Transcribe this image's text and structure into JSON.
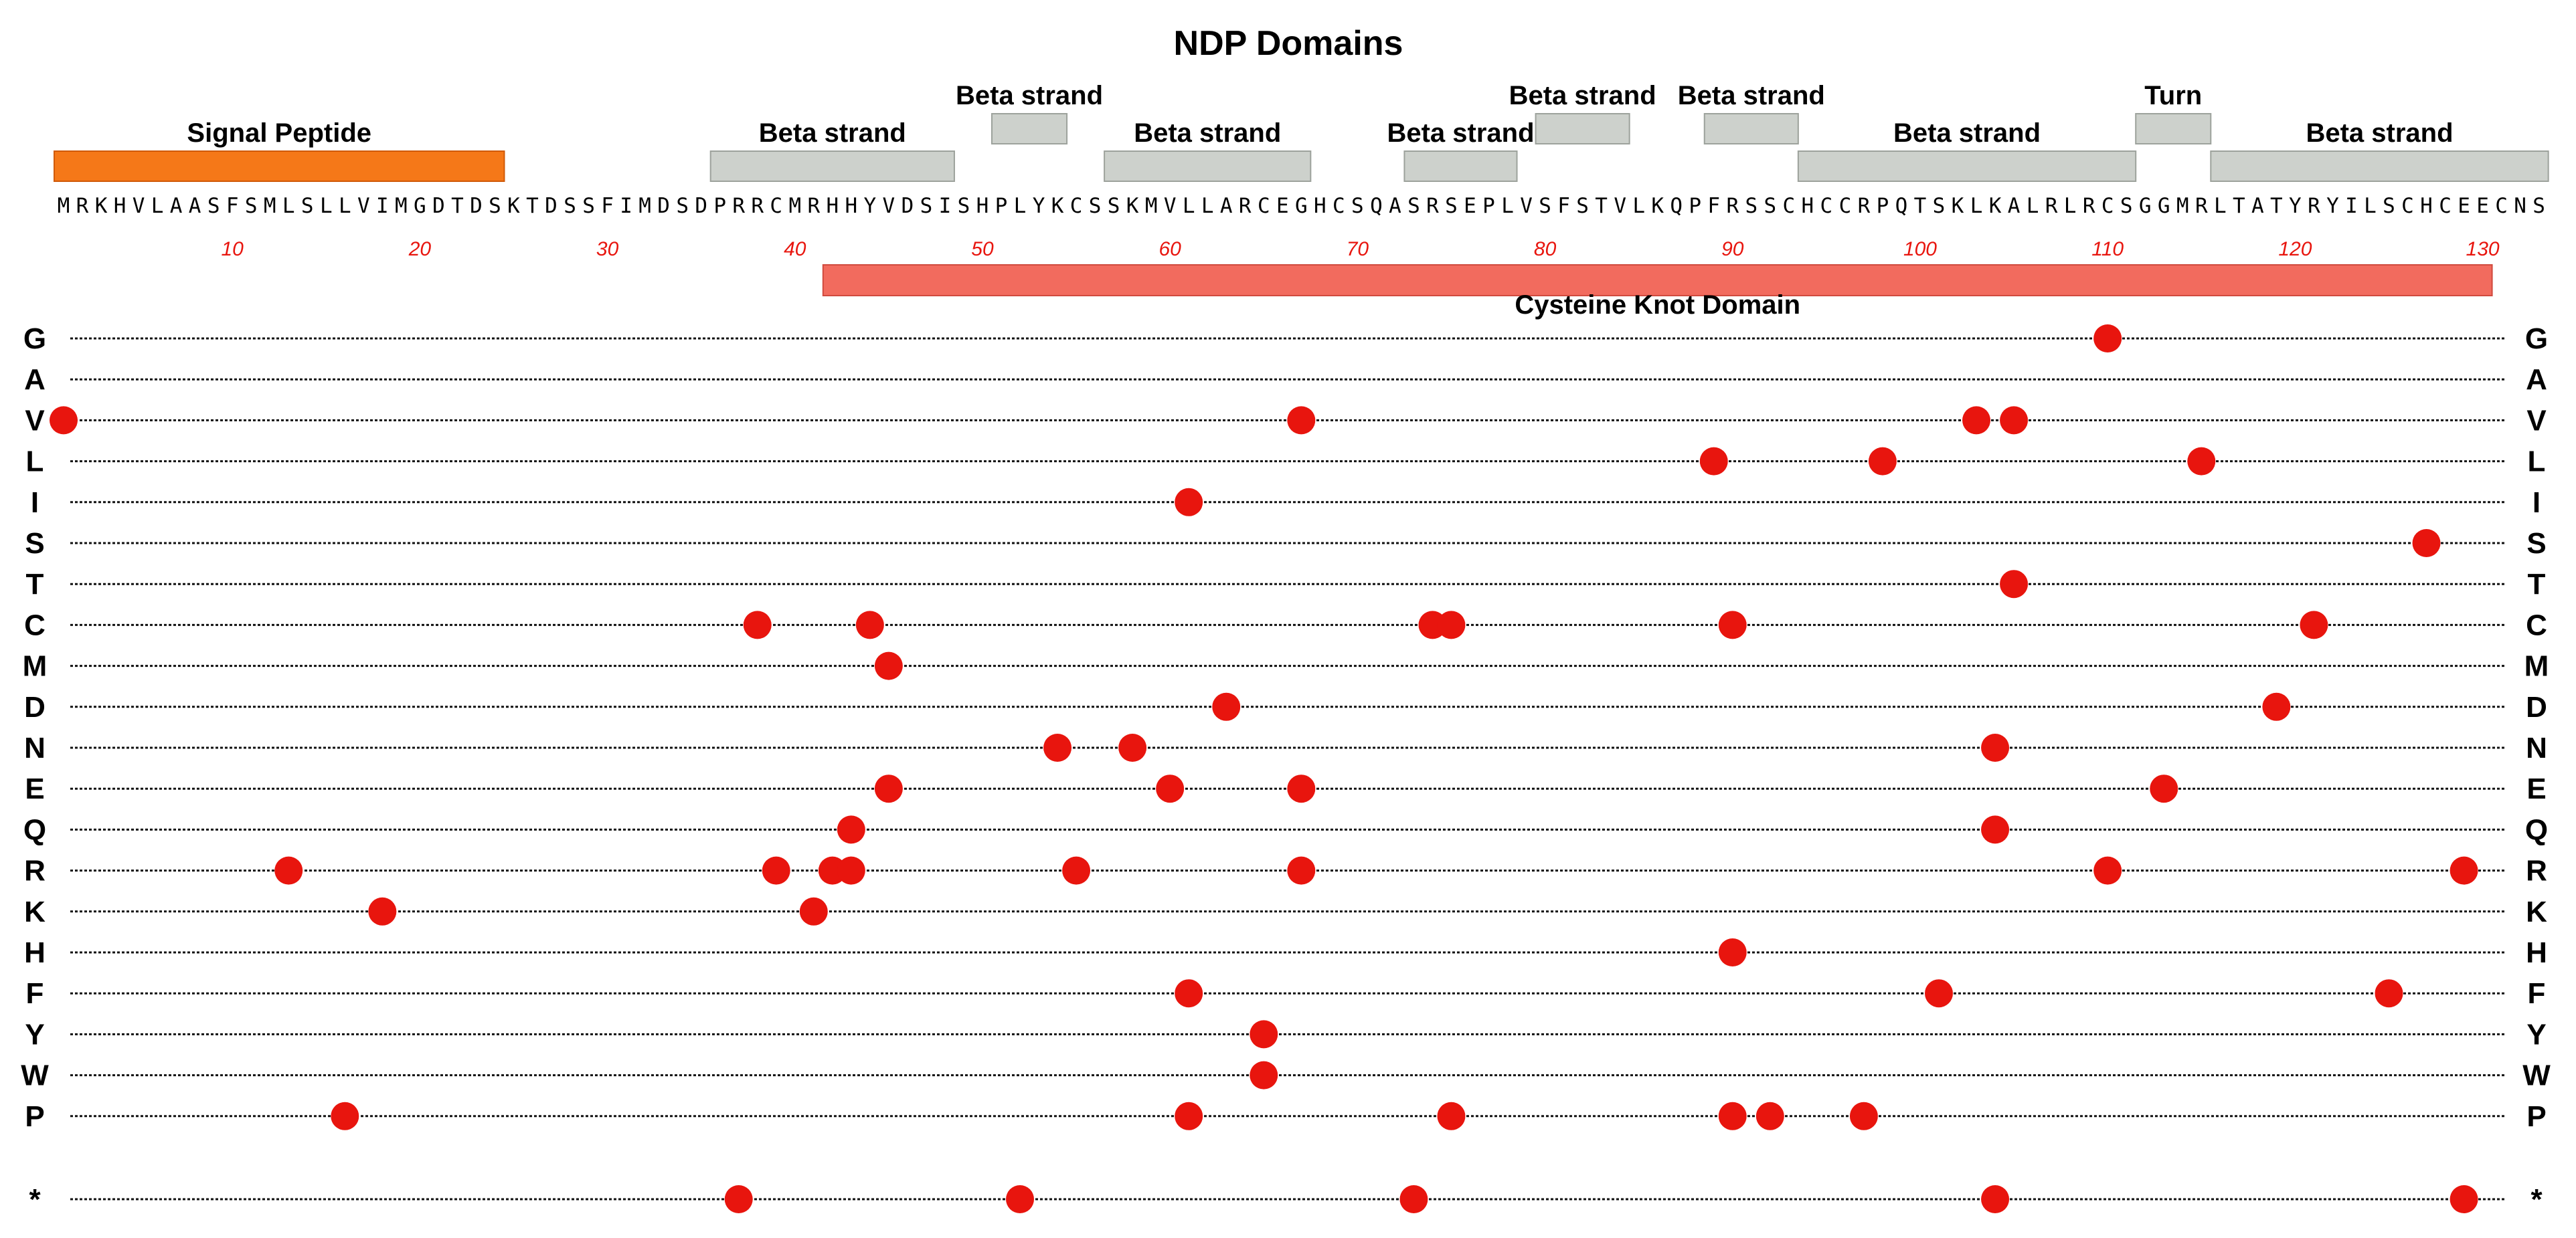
{
  "chart_data": {
    "type": "scatter",
    "title": "NDP Domains",
    "sequence": "MRKHVLAASFSMLSLLVIMGDTDSKTDSSFIMDSDPRRCMRHHYVDSISHPLYKCSSKMVLLARCEGHCSQASRSEPLVSFSTVLKQPFRSSCHCCRPQTSKLKALRLRCSGGMRLTATYRYILSCHCEECNS",
    "x_ticks": [
      10,
      20,
      30,
      40,
      50,
      60,
      70,
      80,
      90,
      100,
      110,
      120,
      130
    ],
    "xlim": [
      1,
      133
    ],
    "features": [
      {
        "label": "Signal Peptide",
        "start": 1,
        "end": 24,
        "tier": 1,
        "kind": "signal"
      },
      {
        "label": "Beta strand",
        "start": 36,
        "end": 48,
        "tier": 1,
        "kind": "strand"
      },
      {
        "label": "Beta strand",
        "start": 51,
        "end": 54,
        "tier": 2,
        "kind": "strand"
      },
      {
        "label": "Beta strand",
        "start": 57,
        "end": 67,
        "tier": 1,
        "kind": "strand"
      },
      {
        "label": "Beta strand",
        "start": 73,
        "end": 78,
        "tier": 1,
        "kind": "strand"
      },
      {
        "label": "Beta strand",
        "start": 80,
        "end": 84,
        "tier": 2,
        "kind": "strand"
      },
      {
        "label": "Beta strand",
        "start": 89,
        "end": 93,
        "tier": 2,
        "kind": "strand"
      },
      {
        "label": "Beta strand",
        "start": 94,
        "end": 111,
        "tier": 1,
        "kind": "strand"
      },
      {
        "label": "Turn",
        "start": 112,
        "end": 115,
        "tier": 2,
        "kind": "turn"
      },
      {
        "label": "Beta strand",
        "start": 116,
        "end": 133,
        "tier": 1,
        "kind": "strand"
      }
    ],
    "domain": {
      "label": "Cysteine Knot Domain",
      "start": 42,
      "end": 130
    },
    "rows": [
      "G",
      "A",
      "V",
      "L",
      "I",
      "S",
      "T",
      "C",
      "M",
      "D",
      "N",
      "E",
      "Q",
      "R",
      "K",
      "H",
      "F",
      "Y",
      "W",
      "P",
      "*"
    ],
    "series": [
      {
        "row": "G",
        "positions": [
          110
        ]
      },
      {
        "row": "A",
        "positions": []
      },
      {
        "row": "V",
        "positions": [
          1,
          67,
          103,
          105
        ]
      },
      {
        "row": "L",
        "positions": [
          89,
          98,
          115
        ]
      },
      {
        "row": "I",
        "positions": [
          61
        ]
      },
      {
        "row": "S",
        "positions": [
          127
        ]
      },
      {
        "row": "T",
        "positions": [
          105
        ]
      },
      {
        "row": "C",
        "positions": [
          38,
          44,
          74,
          75,
          90,
          121
        ]
      },
      {
        "row": "M",
        "positions": [
          45
        ]
      },
      {
        "row": "D",
        "positions": [
          63,
          119
        ]
      },
      {
        "row": "N",
        "positions": [
          54,
          58,
          104
        ]
      },
      {
        "row": "E",
        "positions": [
          45,
          60,
          67,
          113
        ]
      },
      {
        "row": "Q",
        "positions": [
          43,
          104
        ]
      },
      {
        "row": "R",
        "positions": [
          13,
          39,
          42,
          43,
          55,
          67,
          110,
          129
        ]
      },
      {
        "row": "K",
        "positions": [
          18,
          41
        ]
      },
      {
        "row": "H",
        "positions": [
          90
        ]
      },
      {
        "row": "F",
        "positions": [
          61,
          101,
          125
        ]
      },
      {
        "row": "Y",
        "positions": [
          65
        ]
      },
      {
        "row": "W",
        "positions": [
          65
        ]
      },
      {
        "row": "P",
        "positions": [
          16,
          61,
          75,
          90,
          92,
          97
        ]
      },
      {
        "row": "*",
        "positions": [
          37,
          52,
          73,
          104,
          129
        ]
      }
    ],
    "colors": {
      "signal": "#F57818",
      "strand": "#CDD1CC",
      "strand_border": "#9DA29C",
      "domain": "#F26B5E",
      "domain_border": "#D04A3E",
      "dot": "#E8150E",
      "tick": "#E8150E"
    }
  }
}
